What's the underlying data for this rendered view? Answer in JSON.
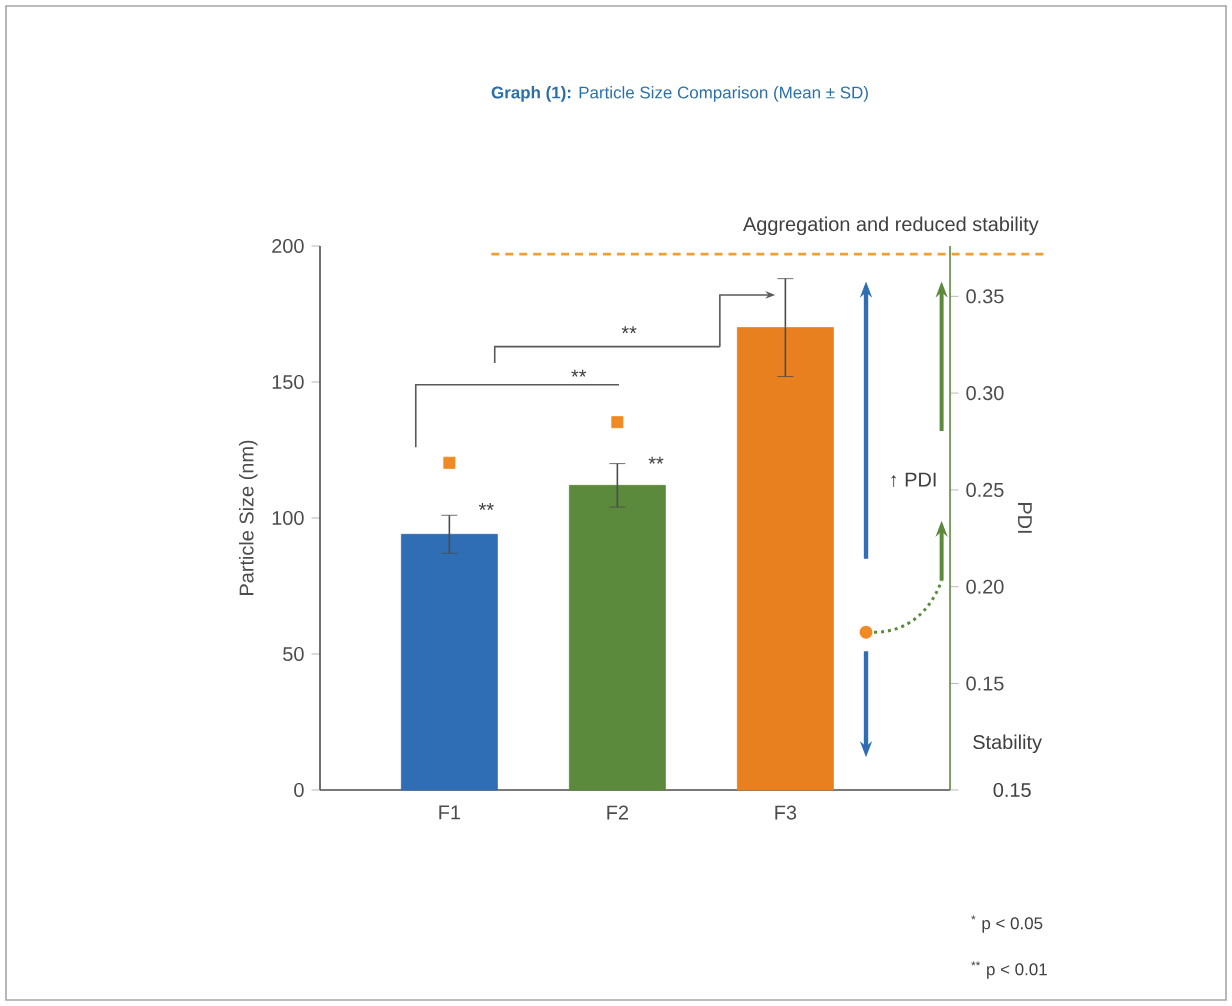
{
  "chart_data": {
    "type": "bar",
    "title": "**Graph (1):** Particle Size Comparison (Mean ± SD)",
    "ylabel": "Particle Size (nm)",
    "y2label": "PDI",
    "categories": [
      "F1",
      "F2",
      "F3"
    ],
    "series": [
      {
        "colors": [
          "#2f6db5",
          "#5b8a3c",
          "#e8801f"
        ],
        "values": [
          94,
          112,
          170
        ],
        "errors": [
          7,
          8,
          18
        ]
      },
      {
        "type": "scatter",
        "axis": "y2",
        "x": [
          "F1",
          "F2"
        ],
        "values": [
          0.264,
          0.285
        ],
        "color": "#f08a24"
      }
    ],
    "marker": "square",
    "ylim": [
      0,
      200
    ],
    "yticks": [
      0,
      50,
      100,
      150,
      200
    ],
    "y2lim": [
      0.095,
      0.376
    ],
    "y2ticks": [
      {
        "value": 0.095,
        "label": null
      },
      0.15,
      {
        "value": 0.2,
        "label": "0.20"
      },
      0.25,
      {
        "value": 0.3,
        "label": "0.30"
      },
      0.35
    ],
    "ref_lines": [
      {
        "axis": "y",
        "value": 197,
        "label": "Aggregation  and reduced stability",
        "color": "#f0a030",
        "line_style": "dashed"
      }
    ],
    "annotations": [
      "**",
      "**",
      "**",
      "**",
      "↑ PDI",
      "Stability",
      "0.15",
      "$^{*}$ p < 0.05",
      "$^{**}$ p < 0.01"
    ]
  }
}
